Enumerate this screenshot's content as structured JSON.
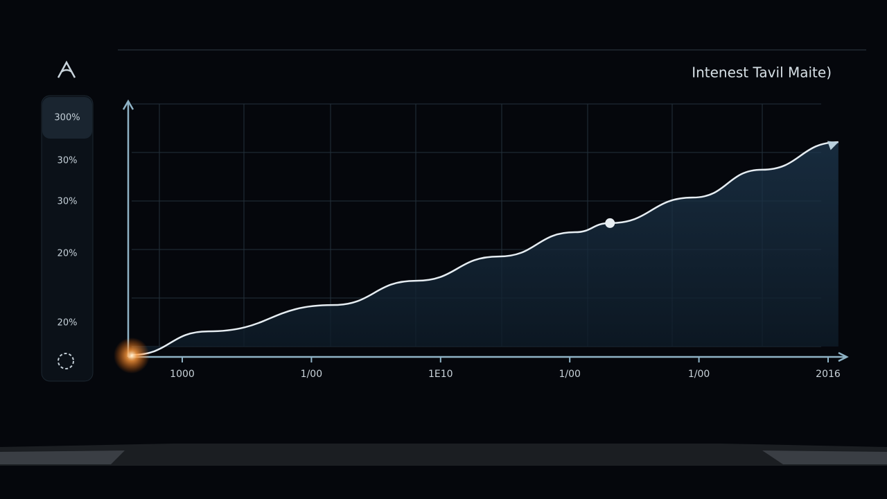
{
  "sidebar": {
    "labels": [
      "300%",
      "30%",
      "30%",
      "20%",
      "20%"
    ]
  },
  "chart_data": {
    "type": "line",
    "title": "Intenest Tavil Maite)",
    "x": [
      0.5,
      11.2,
      28.6,
      40.3,
      51.9,
      62.6,
      67.5,
      79.1,
      88.8,
      99.5
    ],
    "series": [
      {
        "color": "#e6edf2",
        "values": [
          0.8,
          10.1,
          20.5,
          30.1,
          39.7,
          49.3,
          52.9,
          63,
          74,
          84.9
        ]
      }
    ],
    "highlight": 6,
    "xlim": [
      0,
      100
    ],
    "ylim": [
      0,
      100
    ],
    "x_labels": [
      "1000",
      "1/00",
      "1E10",
      "1/00",
      "1/00",
      "2016"
    ]
  }
}
